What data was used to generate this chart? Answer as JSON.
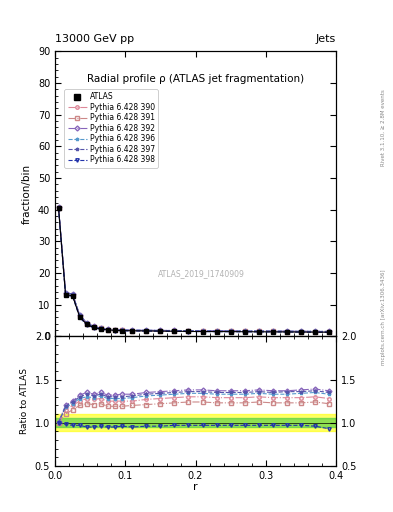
{
  "title": "Radial profile ρ (ATLAS jet fragmentation)",
  "top_left_label": "13000 GeV pp",
  "top_right_label": "Jets",
  "ylabel_main": "fraction/bin",
  "ylabel_ratio": "Ratio to ATLAS",
  "xlabel": "r",
  "watermark": "ATLAS_2019_I1740909",
  "right_label_top": "Rivet 3.1.10, ≥ 2.8M events",
  "right_label_bottom": "mcplots.cern.ch [arXiv:1306.3436]",
  "ylim_main": [
    0,
    90
  ],
  "ylim_ratio": [
    0.5,
    2.0
  ],
  "yticks_main": [
    0,
    10,
    20,
    30,
    40,
    50,
    60,
    70,
    80,
    90
  ],
  "yticks_ratio": [
    0.5,
    1.0,
    1.5,
    2.0
  ],
  "r_values": [
    0.005,
    0.015,
    0.025,
    0.035,
    0.045,
    0.055,
    0.065,
    0.075,
    0.085,
    0.095,
    0.11,
    0.13,
    0.15,
    0.17,
    0.19,
    0.21,
    0.23,
    0.25,
    0.27,
    0.29,
    0.31,
    0.33,
    0.35,
    0.37,
    0.39
  ],
  "atlas_data": [
    40.5,
    13.2,
    12.8,
    6.2,
    3.8,
    2.8,
    2.3,
    2.0,
    1.9,
    1.8,
    1.75,
    1.7,
    1.65,
    1.6,
    1.55,
    1.5,
    1.5,
    1.48,
    1.45,
    1.42,
    1.4,
    1.38,
    1.35,
    1.32,
    1.3
  ],
  "atlas_color": "#000000",
  "series": [
    {
      "label": "Pythia 6.428 390",
      "color": "#dd8899",
      "marker": "o",
      "linestyle": "-.",
      "data": [
        40.5,
        13.5,
        13.2,
        6.5,
        4.1,
        3.0,
        2.5,
        2.1,
        2.0,
        1.9,
        1.85,
        1.82,
        1.78,
        1.74,
        1.7,
        1.68,
        1.65,
        1.63,
        1.6,
        1.58,
        1.55,
        1.53,
        1.5,
        1.48,
        1.45
      ],
      "ratio": [
        1.0,
        1.15,
        1.2,
        1.25,
        1.28,
        1.27,
        1.28,
        1.25,
        1.25,
        1.25,
        1.25,
        1.27,
        1.28,
        1.29,
        1.3,
        1.3,
        1.29,
        1.29,
        1.29,
        1.3,
        1.29,
        1.29,
        1.29,
        1.3,
        1.28
      ]
    },
    {
      "label": "Pythia 6.428 391",
      "color": "#cc8888",
      "marker": "s",
      "linestyle": "-.",
      "data": [
        40.5,
        13.4,
        13.0,
        6.4,
        4.0,
        2.95,
        2.48,
        2.08,
        1.98,
        1.88,
        1.83,
        1.8,
        1.76,
        1.72,
        1.68,
        1.66,
        1.63,
        1.61,
        1.58,
        1.56,
        1.53,
        1.51,
        1.48,
        1.46,
        1.43
      ],
      "ratio": [
        1.0,
        1.1,
        1.15,
        1.2,
        1.22,
        1.21,
        1.22,
        1.19,
        1.19,
        1.19,
        1.2,
        1.21,
        1.22,
        1.23,
        1.24,
        1.24,
        1.23,
        1.23,
        1.23,
        1.24,
        1.23,
        1.23,
        1.23,
        1.24,
        1.22
      ]
    },
    {
      "label": "Pythia 6.428 392",
      "color": "#8866bb",
      "marker": "D",
      "linestyle": "-.",
      "data": [
        40.8,
        13.8,
        13.5,
        6.8,
        4.3,
        3.1,
        2.6,
        2.2,
        2.1,
        2.0,
        1.95,
        1.92,
        1.88,
        1.84,
        1.8,
        1.78,
        1.75,
        1.73,
        1.7,
        1.68,
        1.65,
        1.63,
        1.6,
        1.58,
        1.55
      ],
      "ratio": [
        1.01,
        1.2,
        1.25,
        1.32,
        1.35,
        1.33,
        1.35,
        1.32,
        1.32,
        1.33,
        1.33,
        1.35,
        1.36,
        1.37,
        1.38,
        1.38,
        1.37,
        1.37,
        1.37,
        1.38,
        1.37,
        1.37,
        1.38,
        1.39,
        1.37
      ]
    },
    {
      "label": "Pythia 6.428 396",
      "color": "#5599cc",
      "marker": "*",
      "linestyle": "--",
      "data": [
        40.6,
        13.6,
        13.3,
        6.6,
        4.2,
        3.05,
        2.55,
        2.15,
        2.05,
        1.95,
        1.9,
        1.87,
        1.83,
        1.79,
        1.75,
        1.73,
        1.7,
        1.68,
        1.65,
        1.63,
        1.6,
        1.58,
        1.55,
        1.53,
        1.5
      ],
      "ratio": [
        1.0,
        1.18,
        1.22,
        1.28,
        1.3,
        1.29,
        1.31,
        1.28,
        1.28,
        1.28,
        1.29,
        1.31,
        1.32,
        1.33,
        1.34,
        1.34,
        1.33,
        1.33,
        1.33,
        1.34,
        1.33,
        1.33,
        1.34,
        1.35,
        1.33
      ]
    },
    {
      "label": "Pythia 6.428 397",
      "color": "#5555aa",
      "marker": "*",
      "linestyle": "--",
      "data": [
        40.7,
        13.7,
        13.4,
        6.7,
        4.25,
        3.08,
        2.58,
        2.18,
        2.08,
        1.98,
        1.93,
        1.9,
        1.86,
        1.82,
        1.78,
        1.76,
        1.73,
        1.71,
        1.68,
        1.66,
        1.63,
        1.61,
        1.58,
        1.56,
        1.53
      ],
      "ratio": [
        1.0,
        1.19,
        1.24,
        1.3,
        1.33,
        1.31,
        1.33,
        1.3,
        1.3,
        1.3,
        1.31,
        1.33,
        1.34,
        1.35,
        1.36,
        1.36,
        1.35,
        1.35,
        1.35,
        1.36,
        1.35,
        1.36,
        1.36,
        1.37,
        1.35
      ]
    },
    {
      "label": "Pythia 6.428 398",
      "color": "#2233aa",
      "marker": "v",
      "linestyle": "--",
      "data": [
        40.3,
        13.0,
        12.6,
        6.0,
        3.6,
        2.65,
        2.2,
        1.9,
        1.8,
        1.72,
        1.67,
        1.63,
        1.59,
        1.55,
        1.51,
        1.49,
        1.46,
        1.44,
        1.41,
        1.39,
        1.36,
        1.34,
        1.31,
        1.28,
        1.24
      ],
      "ratio": [
        1.0,
        0.98,
        0.97,
        0.97,
        0.95,
        0.95,
        0.96,
        0.95,
        0.95,
        0.96,
        0.95,
        0.96,
        0.96,
        0.97,
        0.97,
        0.97,
        0.97,
        0.97,
        0.97,
        0.97,
        0.97,
        0.97,
        0.97,
        0.96,
        0.93
      ]
    }
  ],
  "band_color_yellow": "#ffff00",
  "band_color_green": "#44cc44",
  "band_yellow_lo": 0.9,
  "band_yellow_hi": 1.1,
  "band_green_lo": 0.95,
  "band_green_hi": 1.05
}
